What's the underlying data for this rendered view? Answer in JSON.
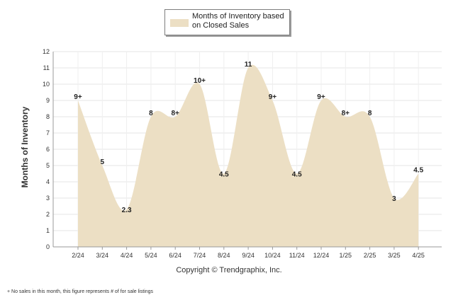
{
  "chart_data": {
    "type": "area",
    "ylabel": "Months of Inventory",
    "ylim": [
      0,
      12
    ],
    "yticks": [
      "0",
      "1",
      "2",
      "3",
      "4",
      "5",
      "6",
      "7",
      "8",
      "9",
      "10",
      "11",
      "12"
    ],
    "categories": [
      "2/24",
      "3/24",
      "4/24",
      "5/24",
      "6/24",
      "7/24",
      "8/24",
      "9/24",
      "10/24",
      "11/24",
      "12/24",
      "1/25",
      "2/25",
      "3/25",
      "4/25"
    ],
    "series": [
      {
        "name": "Months of Inventory based on Closed Sales",
        "values": [
          9,
          5,
          2.3,
          8,
          8,
          10,
          4.5,
          11,
          9,
          4.5,
          9,
          8,
          8,
          3,
          4.5
        ],
        "labels": [
          "9+",
          "5",
          "2.3",
          "8",
          "8+",
          "10+",
          "4.5",
          "11",
          "9+",
          "4.5",
          "9+",
          "8+",
          "8",
          "3",
          "4.5"
        ]
      }
    ],
    "legend_position": "top-center",
    "grid": true
  },
  "colors": {
    "fill": "#ecdfc4",
    "grid": "#e6e6e6",
    "axis": "#999999",
    "text": "#222222"
  },
  "legend": {
    "label": "Months of Inventory based on Closed Sales"
  },
  "footer": {
    "copyright": "Copyright © Trendgraphix, Inc.",
    "note": "+ No sales in this month, this figure represents # of for sale listings"
  }
}
